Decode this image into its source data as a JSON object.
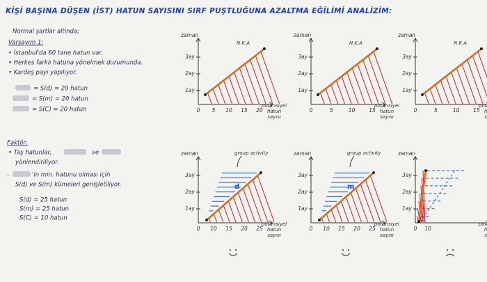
{
  "title": "KİŞİ BAŞINA DÜŞEN (İST) HATUN SAYISINI SIRF PUŞTLUĞUNA AZALTMA EĞİLİMİ ANALİZİM:",
  "assumptions": {
    "intro": "Normal şartlar altında;",
    "heading": "Varsayım 1:",
    "bullets": [
      "• İstanbul'da 60 tane hatun var.",
      "• Herkes farklı hatuna yönelmek durumunda.",
      "• Kardeş payı yapılıyor."
    ],
    "sets": [
      "= S(d) = 20 hatun",
      "= S(m) = 20 hatun",
      "= S(C) = 20 hatun"
    ]
  },
  "factor": {
    "heading": "Faktör:",
    "lines": [
      "• Taş hatunlar,",
      "ve",
      "yönlendiriliyor.",
      "-",
      "'in min. hatunu olması için",
      "S(d) ve S(m) kümeleri genişletiliyor."
    ],
    "sets": [
      "S(d) = 25 hatun",
      "S(m) = 25 hatun",
      "S(C) = 10 hatun"
    ]
  },
  "charts": [
    {
      "y_label": "zaman",
      "yticks": [
        "1ay",
        "2ay",
        "3ay"
      ],
      "xticks": [
        "0",
        "5",
        "10",
        "15",
        "20"
      ],
      "x_label": [
        "potansiyel",
        "hatun",
        "sayısı"
      ],
      "annotation": "N.K.A"
    },
    {
      "y_label": "zaman",
      "yticks": [
        "1ay",
        "2ay",
        "3ay"
      ],
      "xticks": [
        "0",
        "5",
        "10",
        "15"
      ],
      "x_label": [
        "potansiyel",
        "hatun",
        "sayısı"
      ],
      "annotation": "N.K.A"
    },
    {
      "y_label": "zaman",
      "yticks": [
        "1ay",
        "2ay",
        "3ay"
      ],
      "xticks": [
        "0",
        "5",
        "10",
        "15"
      ],
      "x_label": [
        "potansiyel",
        "hatun",
        "sayısı"
      ],
      "annotation": "N.K.A"
    },
    {
      "y_label": "zaman",
      "yticks": [
        "1ay",
        "2ay",
        "3ay"
      ],
      "xticks": [
        "0",
        "10",
        "15",
        "20",
        "25"
      ],
      "x_label": [
        "potansiyel",
        "hatun",
        "sayısı"
      ],
      "annotation": "group activity",
      "mark": "d"
    },
    {
      "y_label": "zaman",
      "yticks": [
        "1ay",
        "2ay",
        "3ay"
      ],
      "xticks": [
        "0",
        "10",
        "15",
        "20",
        "25"
      ],
      "x_label": [
        "potansiyel",
        "hatun",
        "sayısı"
      ],
      "annotation": "group activity",
      "mark": "m"
    },
    {
      "y_label": "zaman",
      "yticks": [
        "1ay",
        "2ay",
        "3ay"
      ],
      "xticks": [
        "0",
        "10"
      ],
      "x_label": [
        "potansiyel",
        "hatun",
        "sayısı"
      ]
    }
  ]
}
